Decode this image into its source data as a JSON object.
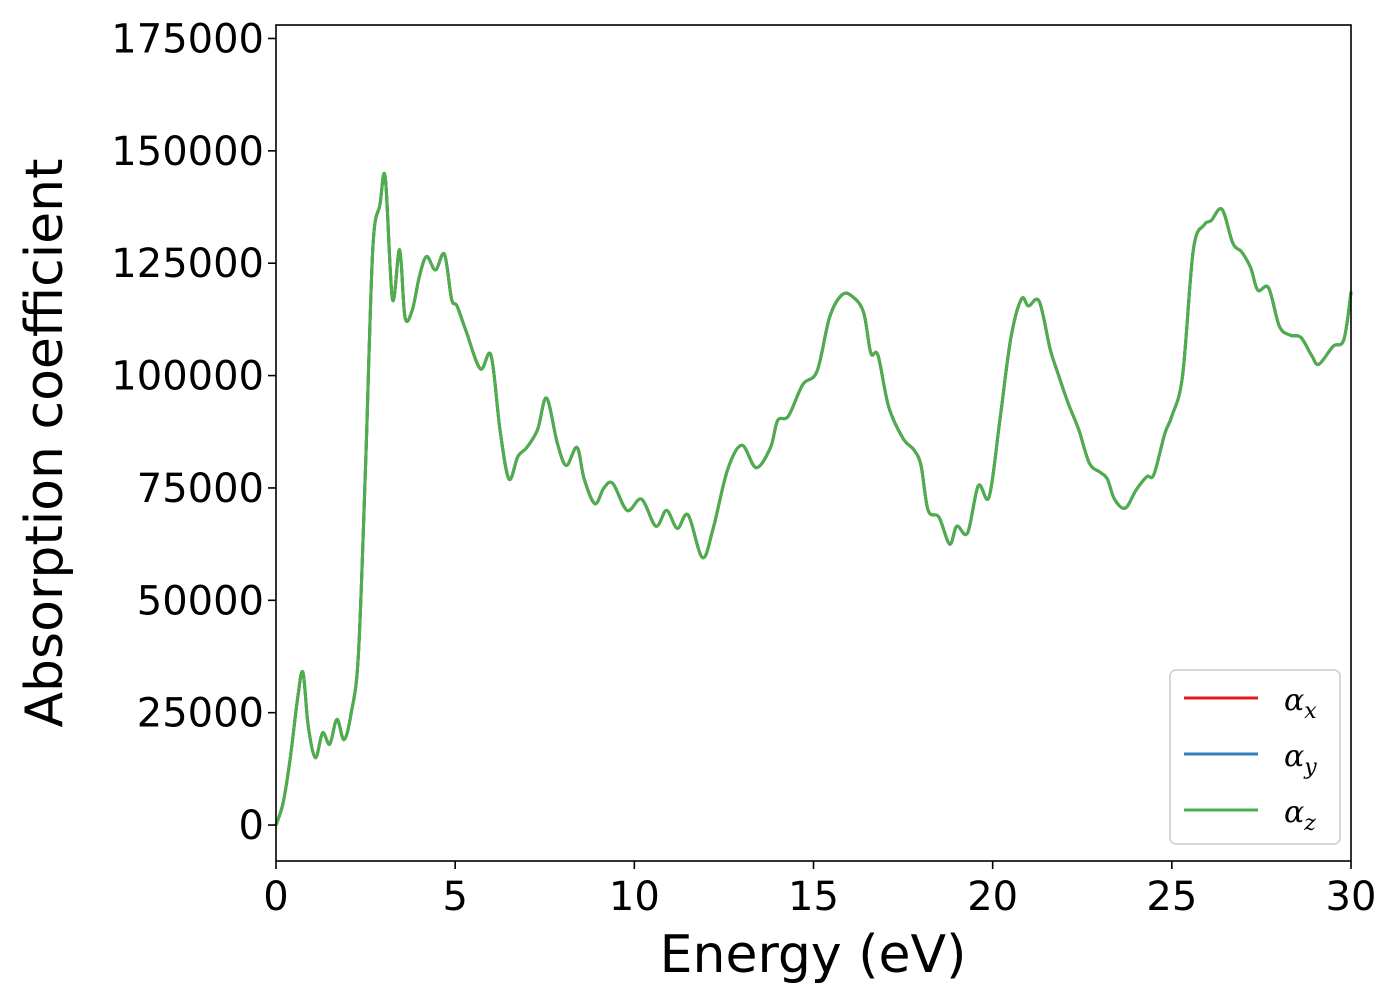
{
  "chart_data": {
    "type": "line",
    "title": "",
    "xlabel": "Energy (eV)",
    "ylabel": "Absorption coefficient",
    "xlim": [
      0,
      30
    ],
    "ylim": [
      -8000,
      178000
    ],
    "xticks": [
      0,
      5,
      10,
      15,
      20,
      25,
      30
    ],
    "xtick_labels": [
      "0",
      "5",
      "10",
      "15",
      "20",
      "25",
      "30"
    ],
    "yticks": [
      0,
      25000,
      50000,
      75000,
      100000,
      125000,
      150000,
      175000
    ],
    "ytick_labels": [
      "0",
      "25000",
      "50000",
      "75000",
      "100000",
      "125000",
      "150000",
      "175000"
    ],
    "grid": false,
    "legend": {
      "location": "lower-right"
    },
    "series": [
      {
        "name": "α",
        "subscript": "x",
        "color": "#e41a1c"
      },
      {
        "name": "α",
        "subscript": "y",
        "color": "#377eb8"
      },
      {
        "name": "α",
        "subscript": "z",
        "color": "#4daf4a"
      }
    ],
    "x": [
      0,
      0.2,
      0.4,
      0.6,
      0.75,
      0.9,
      1.1,
      1.3,
      1.5,
      1.7,
      1.9,
      2.1,
      2.3,
      2.5,
      2.7,
      2.9,
      3.05,
      3.25,
      3.45,
      3.6,
      3.8,
      4.0,
      4.2,
      4.45,
      4.7,
      4.9,
      5.05,
      5.3,
      5.7,
      6.0,
      6.25,
      6.5,
      6.75,
      7.0,
      7.3,
      7.55,
      7.85,
      8.1,
      8.4,
      8.6,
      8.9,
      9.15,
      9.4,
      9.8,
      10.2,
      10.6,
      10.9,
      11.2,
      11.5,
      11.9,
      12.2,
      12.6,
      13.0,
      13.4,
      13.8,
      14.0,
      14.3,
      14.7,
      15.1,
      15.45,
      15.8,
      16.1,
      16.4,
      16.6,
      16.8,
      17.1,
      17.5,
      17.8,
      18.0,
      18.2,
      18.5,
      18.8,
      19.0,
      19.3,
      19.6,
      19.9,
      20.2,
      20.5,
      20.8,
      21.0,
      21.3,
      21.6,
      21.8,
      22.1,
      22.4,
      22.7,
      23.0,
      23.2,
      23.4,
      23.7,
      24.0,
      24.3,
      24.5,
      24.8,
      25.0,
      25.3,
      25.6,
      25.9,
      26.1,
      26.4,
      26.7,
      26.95,
      27.2,
      27.4,
      27.7,
      28.0,
      28.3,
      28.6,
      28.9,
      29.1,
      29.5,
      29.8,
      30.0
    ],
    "values": [
      0,
      5000,
      15000,
      28000,
      34000,
      22000,
      15000,
      20500,
      18000,
      23500,
      19000,
      25000,
      38000,
      80000,
      128000,
      138000,
      144000,
      117000,
      128000,
      113000,
      114500,
      122000,
      126500,
      123500,
      127000,
      117000,
      115500,
      110000,
      101500,
      104500,
      88000,
      77000,
      82000,
      84000,
      88000,
      95000,
      85000,
      80000,
      84000,
      77000,
      71500,
      75000,
      76000,
      70000,
      72500,
      66500,
      70000,
      66000,
      69000,
      59500,
      66000,
      79000,
      84500,
      79500,
      84000,
      90000,
      91000,
      98000,
      101000,
      113000,
      118000,
      117500,
      114000,
      105000,
      104500,
      93000,
      86000,
      83500,
      80000,
      70000,
      68500,
      62500,
      66500,
      65000,
      75500,
      73000,
      90000,
      108000,
      117000,
      115500,
      116500,
      106000,
      101000,
      94000,
      88000,
      80500,
      78500,
      77000,
      72500,
      70500,
      74500,
      77500,
      78000,
      87000,
      91000,
      100000,
      128000,
      133500,
      134500,
      137000,
      129500,
      127500,
      124000,
      119000,
      119500,
      111000,
      109000,
      108500,
      104500,
      102500,
      106500,
      108000,
      118500
    ]
  }
}
